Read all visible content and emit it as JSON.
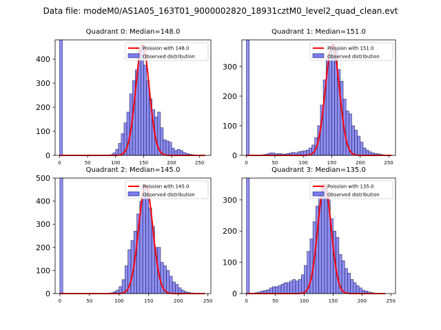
{
  "figure_title": "Data file: modeM0/AS1A05_163T01_9000002820_18931cztM0_level2_quad_clean.evt",
  "chart_data": [
    {
      "type": "bar",
      "title": "Quadrant 0: Median=148.0",
      "xlim": [
        -8,
        270
      ],
      "ylim": [
        0,
        480
      ],
      "xticks": [
        0,
        50,
        100,
        150,
        200,
        250
      ],
      "yticks": [
        0,
        100,
        200,
        300,
        400
      ],
      "bin_width": 5,
      "bins": [
        {
          "x": 0,
          "y": 480
        },
        {
          "x": 90,
          "y": 3
        },
        {
          "x": 95,
          "y": 10
        },
        {
          "x": 100,
          "y": 25
        },
        {
          "x": 105,
          "y": 50
        },
        {
          "x": 110,
          "y": 90
        },
        {
          "x": 115,
          "y": 135
        },
        {
          "x": 120,
          "y": 180
        },
        {
          "x": 125,
          "y": 255
        },
        {
          "x": 130,
          "y": 310
        },
        {
          "x": 135,
          "y": 355
        },
        {
          "x": 140,
          "y": 435
        },
        {
          "x": 145,
          "y": 460
        },
        {
          "x": 150,
          "y": 375
        },
        {
          "x": 155,
          "y": 310
        },
        {
          "x": 160,
          "y": 235
        },
        {
          "x": 165,
          "y": 190
        },
        {
          "x": 170,
          "y": 160
        },
        {
          "x": 175,
          "y": 180
        },
        {
          "x": 180,
          "y": 115
        },
        {
          "x": 185,
          "y": 65
        },
        {
          "x": 190,
          "y": 60
        },
        {
          "x": 195,
          "y": 55
        },
        {
          "x": 200,
          "y": 30
        },
        {
          "x": 205,
          "y": 20
        },
        {
          "x": 210,
          "y": 25
        },
        {
          "x": 215,
          "y": 20
        },
        {
          "x": 220,
          "y": 12
        },
        {
          "x": 225,
          "y": 8
        },
        {
          "x": 230,
          "y": 5
        },
        {
          "x": 235,
          "y": 3
        }
      ],
      "poisson_mean": 148.0,
      "poisson_peak": 460,
      "poisson_xrange": [
        0,
        260
      ],
      "legend": [
        "Poission with 148.0",
        "Observed distribution"
      ]
    },
    {
      "type": "bar",
      "title": "Quadrant 1: Median=151.0",
      "xlim": [
        -8,
        262
      ],
      "ylim": [
        0,
        390
      ],
      "xticks": [
        0,
        50,
        100,
        150,
        200,
        250
      ],
      "yticks": [
        0,
        100,
        200,
        300
      ],
      "bin_width": 5,
      "bins": [
        {
          "x": 0,
          "y": 390
        },
        {
          "x": 30,
          "y": 3
        },
        {
          "x": 35,
          "y": 5
        },
        {
          "x": 40,
          "y": 8
        },
        {
          "x": 45,
          "y": 8
        },
        {
          "x": 50,
          "y": 5
        },
        {
          "x": 55,
          "y": 6
        },
        {
          "x": 60,
          "y": 5
        },
        {
          "x": 65,
          "y": 4
        },
        {
          "x": 70,
          "y": 6
        },
        {
          "x": 75,
          "y": 8
        },
        {
          "x": 80,
          "y": 10
        },
        {
          "x": 85,
          "y": 8
        },
        {
          "x": 90,
          "y": 12
        },
        {
          "x": 95,
          "y": 14
        },
        {
          "x": 100,
          "y": 15
        },
        {
          "x": 105,
          "y": 18
        },
        {
          "x": 110,
          "y": 25
        },
        {
          "x": 115,
          "y": 35
        },
        {
          "x": 120,
          "y": 60
        },
        {
          "x": 125,
          "y": 100
        },
        {
          "x": 130,
          "y": 170
        },
        {
          "x": 135,
          "y": 255
        },
        {
          "x": 140,
          "y": 330
        },
        {
          "x": 145,
          "y": 350
        },
        {
          "x": 150,
          "y": 375
        },
        {
          "x": 155,
          "y": 355
        },
        {
          "x": 160,
          "y": 290
        },
        {
          "x": 165,
          "y": 250
        },
        {
          "x": 170,
          "y": 190
        },
        {
          "x": 175,
          "y": 150
        },
        {
          "x": 180,
          "y": 140
        },
        {
          "x": 185,
          "y": 100
        },
        {
          "x": 190,
          "y": 85
        },
        {
          "x": 195,
          "y": 65
        },
        {
          "x": 200,
          "y": 45
        },
        {
          "x": 205,
          "y": 25
        },
        {
          "x": 210,
          "y": 18
        },
        {
          "x": 215,
          "y": 12
        },
        {
          "x": 220,
          "y": 8
        },
        {
          "x": 225,
          "y": 6
        },
        {
          "x": 230,
          "y": 5
        },
        {
          "x": 235,
          "y": 3
        }
      ],
      "poisson_mean": 151.0,
      "poisson_peak": 375,
      "poisson_xrange": [
        0,
        255
      ],
      "legend": [
        "Poission with 151.0",
        "Observed distribution"
      ]
    },
    {
      "type": "bar",
      "title": "Quadrant 2: Median=145.0",
      "xlim": [
        -8,
        255
      ],
      "ylim": [
        0,
        500
      ],
      "xticks": [
        0,
        50,
        100,
        150,
        200,
        250
      ],
      "yticks": [
        0,
        100,
        200,
        300,
        400,
        500
      ],
      "bin_width": 5,
      "bins": [
        {
          "x": 0,
          "y": 500
        },
        {
          "x": 85,
          "y": 3
        },
        {
          "x": 90,
          "y": 8
        },
        {
          "x": 95,
          "y": 15
        },
        {
          "x": 100,
          "y": 30
        },
        {
          "x": 105,
          "y": 60
        },
        {
          "x": 110,
          "y": 120
        },
        {
          "x": 115,
          "y": 190
        },
        {
          "x": 120,
          "y": 230
        },
        {
          "x": 125,
          "y": 270
        },
        {
          "x": 130,
          "y": 345
        },
        {
          "x": 135,
          "y": 400
        },
        {
          "x": 140,
          "y": 470
        },
        {
          "x": 145,
          "y": 430
        },
        {
          "x": 150,
          "y": 370
        },
        {
          "x": 155,
          "y": 290
        },
        {
          "x": 160,
          "y": 200
        },
        {
          "x": 165,
          "y": 200
        },
        {
          "x": 170,
          "y": 135
        },
        {
          "x": 175,
          "y": 120
        },
        {
          "x": 180,
          "y": 100
        },
        {
          "x": 185,
          "y": 75
        },
        {
          "x": 190,
          "y": 50
        },
        {
          "x": 195,
          "y": 40
        },
        {
          "x": 200,
          "y": 25
        },
        {
          "x": 205,
          "y": 15
        },
        {
          "x": 210,
          "y": 8
        },
        {
          "x": 215,
          "y": 5
        },
        {
          "x": 220,
          "y": 3
        }
      ],
      "poisson_mean": 145.0,
      "poisson_peak": 470,
      "poisson_xrange": [
        0,
        245
      ],
      "legend": [
        "Poission with 145.0",
        "Observed distribution"
      ]
    },
    {
      "type": "bar",
      "title": "Quadrant 3: Median=135.0",
      "xlim": [
        -8,
        258
      ],
      "ylim": [
        0,
        370
      ],
      "xticks": [
        0,
        50,
        100,
        150,
        200,
        250
      ],
      "yticks": [
        0,
        100,
        200,
        300
      ],
      "bin_width": 5,
      "bins": [
        {
          "x": 0,
          "y": 370
        },
        {
          "x": 15,
          "y": 3
        },
        {
          "x": 20,
          "y": 5
        },
        {
          "x": 25,
          "y": 8
        },
        {
          "x": 30,
          "y": 10
        },
        {
          "x": 35,
          "y": 12
        },
        {
          "x": 40,
          "y": 18
        },
        {
          "x": 45,
          "y": 22
        },
        {
          "x": 50,
          "y": 22
        },
        {
          "x": 55,
          "y": 25
        },
        {
          "x": 60,
          "y": 30
        },
        {
          "x": 65,
          "y": 35
        },
        {
          "x": 70,
          "y": 35
        },
        {
          "x": 75,
          "y": 40
        },
        {
          "x": 80,
          "y": 45
        },
        {
          "x": 85,
          "y": 40
        },
        {
          "x": 90,
          "y": 45
        },
        {
          "x": 95,
          "y": 60
        },
        {
          "x": 100,
          "y": 90
        },
        {
          "x": 105,
          "y": 135
        },
        {
          "x": 110,
          "y": 175
        },
        {
          "x": 115,
          "y": 230
        },
        {
          "x": 120,
          "y": 280
        },
        {
          "x": 125,
          "y": 320
        },
        {
          "x": 130,
          "y": 350
        },
        {
          "x": 135,
          "y": 345
        },
        {
          "x": 140,
          "y": 300
        },
        {
          "x": 145,
          "y": 240
        },
        {
          "x": 150,
          "y": 200
        },
        {
          "x": 155,
          "y": 180
        },
        {
          "x": 160,
          "y": 125
        },
        {
          "x": 165,
          "y": 105
        },
        {
          "x": 170,
          "y": 80
        },
        {
          "x": 175,
          "y": 65
        },
        {
          "x": 180,
          "y": 45
        },
        {
          "x": 185,
          "y": 35
        },
        {
          "x": 190,
          "y": 25
        },
        {
          "x": 195,
          "y": 18
        },
        {
          "x": 200,
          "y": 10
        },
        {
          "x": 205,
          "y": 8
        },
        {
          "x": 210,
          "y": 5
        },
        {
          "x": 215,
          "y": 3
        }
      ],
      "poisson_mean": 135.0,
      "poisson_peak": 350,
      "poisson_xrange": [
        0,
        240
      ],
      "legend": [
        "Poission with 135.0",
        "Observed distribution"
      ]
    }
  ],
  "colors": {
    "bar_fill": "#7b7bf0",
    "bar_edge": "#1f1f60",
    "line": "#ff0000",
    "legend_patch": "#7b7bf0"
  }
}
